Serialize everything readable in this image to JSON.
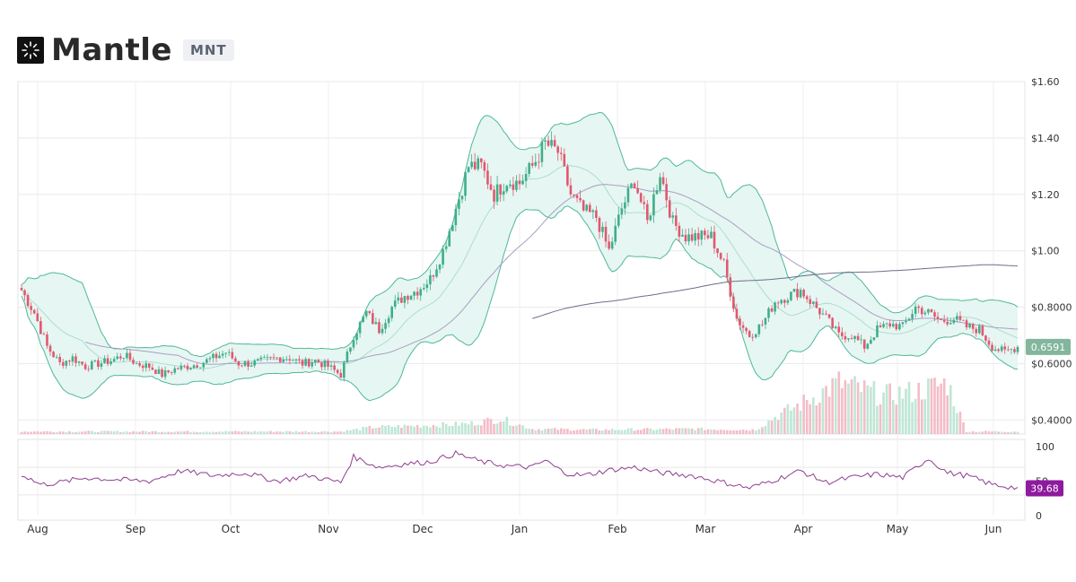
{
  "header": {
    "name": "Mantle",
    "ticker": "MNT",
    "logo_icon": "mantle-logo-icon"
  },
  "colors": {
    "up": "#3fae8a",
    "down": "#e0586f",
    "band_fill": "#e6f6f2",
    "band_line": "#4fb89a",
    "ma_long": "#6d6d8c",
    "ma_mid": "#a89ec5",
    "rsi_line": "#8e3f8e",
    "price_badge": "#82b69d",
    "rsi_badge": "#8e1a9e",
    "grid": "#eaeaea"
  },
  "chart_data": {
    "type": "candlestick",
    "price_axis": {
      "ticks": [
        "$1.60",
        "$1.40",
        "$1.20",
        "$1.00",
        "$0.8000",
        "$0.6000",
        "$0.4000"
      ],
      "ylim": [
        0.35,
        1.6
      ]
    },
    "rsi_axis": {
      "ticks": [
        "100",
        "50",
        "0"
      ],
      "ylim": [
        0,
        100
      ]
    },
    "x_labels": [
      "Aug",
      "Sep",
      "Oct",
      "Nov",
      "Dec",
      "Jan",
      "Feb",
      "Mar",
      "Apr",
      "May",
      "Jun"
    ],
    "current_price_label": "0.6591",
    "current_rsi_label": "39.68",
    "price_anchors": [
      [
        0,
        0.86
      ],
      [
        4,
        0.78
      ],
      [
        8,
        0.66
      ],
      [
        12,
        0.6
      ],
      [
        16,
        0.62
      ],
      [
        20,
        0.59
      ],
      [
        24,
        0.6
      ],
      [
        28,
        0.61
      ],
      [
        32,
        0.63
      ],
      [
        36,
        0.6
      ],
      [
        40,
        0.59
      ],
      [
        44,
        0.56
      ],
      [
        48,
        0.58
      ],
      [
        52,
        0.59
      ],
      [
        56,
        0.6
      ],
      [
        60,
        0.62
      ],
      [
        64,
        0.64
      ],
      [
        68,
        0.6
      ],
      [
        72,
        0.6
      ],
      [
        76,
        0.61
      ],
      [
        80,
        0.62
      ],
      [
        84,
        0.62
      ],
      [
        88,
        0.6
      ],
      [
        92,
        0.61
      ],
      [
        96,
        0.59
      ],
      [
        100,
        0.56
      ],
      [
        104,
        0.7
      ],
      [
        108,
        0.78
      ],
      [
        112,
        0.72
      ],
      [
        116,
        0.8
      ],
      [
        120,
        0.84
      ],
      [
        124,
        0.86
      ],
      [
        128,
        0.9
      ],
      [
        132,
        1.0
      ],
      [
        136,
        1.15
      ],
      [
        140,
        1.3
      ],
      [
        144,
        1.3
      ],
      [
        148,
        1.2
      ],
      [
        152,
        1.25
      ],
      [
        156,
        1.24
      ],
      [
        160,
        1.3
      ],
      [
        164,
        1.38
      ],
      [
        168,
        1.35
      ],
      [
        172,
        1.2
      ],
      [
        176,
        1.14
      ],
      [
        180,
        1.12
      ],
      [
        184,
        1.0
      ],
      [
        188,
        1.15
      ],
      [
        192,
        1.25
      ],
      [
        196,
        1.1
      ],
      [
        200,
        1.28
      ],
      [
        204,
        1.1
      ],
      [
        208,
        1.05
      ],
      [
        212,
        1.05
      ],
      [
        216,
        1.05
      ],
      [
        220,
        0.95
      ],
      [
        224,
        0.76
      ],
      [
        228,
        0.7
      ],
      [
        232,
        0.74
      ],
      [
        236,
        0.82
      ],
      [
        240,
        0.84
      ],
      [
        244,
        0.86
      ],
      [
        248,
        0.81
      ],
      [
        252,
        0.76
      ],
      [
        256,
        0.7
      ],
      [
        260,
        0.7
      ],
      [
        264,
        0.66
      ],
      [
        268,
        0.72
      ],
      [
        272,
        0.74
      ],
      [
        276,
        0.73
      ],
      [
        280,
        0.8
      ],
      [
        284,
        0.78
      ],
      [
        288,
        0.75
      ],
      [
        292,
        0.76
      ],
      [
        296,
        0.73
      ],
      [
        300,
        0.72
      ],
      [
        304,
        0.66
      ],
      [
        308,
        0.64
      ],
      [
        312,
        0.66
      ]
    ],
    "rsi_anchors": [
      [
        0,
        60
      ],
      [
        6,
        45
      ],
      [
        12,
        48
      ],
      [
        20,
        55
      ],
      [
        30,
        52
      ],
      [
        40,
        50
      ],
      [
        50,
        65
      ],
      [
        60,
        58
      ],
      [
        70,
        62
      ],
      [
        80,
        50
      ],
      [
        90,
        58
      ],
      [
        100,
        48
      ],
      [
        104,
        85
      ],
      [
        112,
        70
      ],
      [
        120,
        75
      ],
      [
        128,
        78
      ],
      [
        136,
        90
      ],
      [
        144,
        78
      ],
      [
        152,
        72
      ],
      [
        160,
        70
      ],
      [
        164,
        80
      ],
      [
        170,
        62
      ],
      [
        176,
        58
      ],
      [
        184,
        66
      ],
      [
        192,
        70
      ],
      [
        200,
        62
      ],
      [
        210,
        58
      ],
      [
        220,
        48
      ],
      [
        228,
        40
      ],
      [
        236,
        52
      ],
      [
        244,
        65
      ],
      [
        252,
        48
      ],
      [
        260,
        55
      ],
      [
        268,
        60
      ],
      [
        276,
        55
      ],
      [
        284,
        83
      ],
      [
        290,
        62
      ],
      [
        296,
        58
      ],
      [
        304,
        45
      ],
      [
        312,
        40
      ]
    ],
    "volume_profile": [
      [
        0,
        0.03
      ],
      [
        100,
        0.03
      ],
      [
        110,
        0.08
      ],
      [
        140,
        0.12
      ],
      [
        150,
        0.18
      ],
      [
        160,
        0.06
      ],
      [
        180,
        0.05
      ],
      [
        210,
        0.06
      ],
      [
        230,
        0.05
      ],
      [
        236,
        0.2
      ],
      [
        244,
        0.35
      ],
      [
        256,
        0.6
      ],
      [
        270,
        0.45
      ],
      [
        280,
        0.5
      ],
      [
        290,
        0.6
      ],
      [
        296,
        0.03
      ],
      [
        312,
        0.03
      ]
    ]
  }
}
